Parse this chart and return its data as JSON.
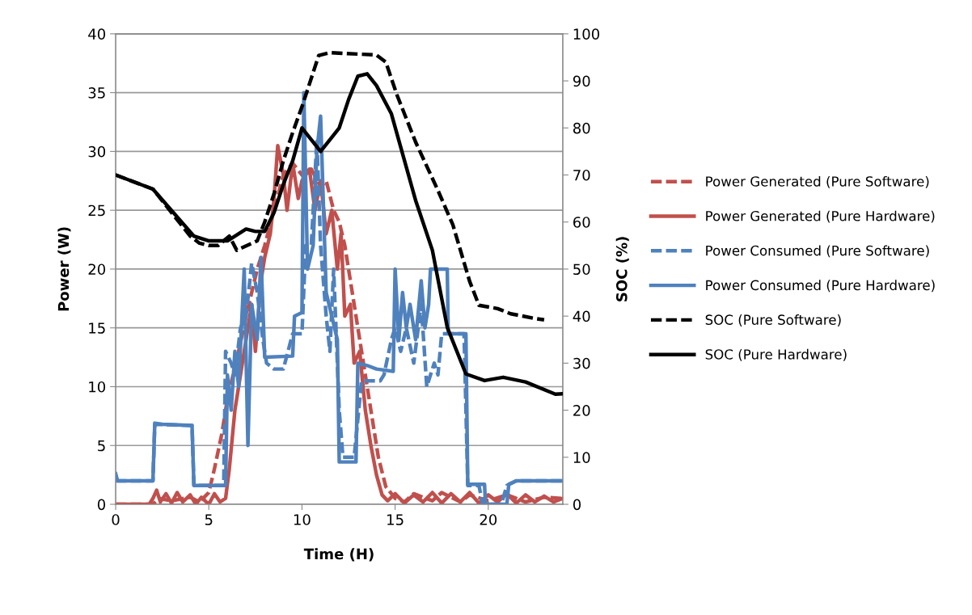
{
  "chart_data": {
    "type": "line",
    "xlabel": "Time (H)",
    "ylabel": "Power (W)",
    "y2label": "SOC (%)",
    "xlim": [
      0,
      24
    ],
    "xticks": [
      0,
      5,
      10,
      15,
      20
    ],
    "ylim": [
      0,
      40
    ],
    "yticks": [
      0,
      5,
      10,
      15,
      20,
      25,
      30,
      35,
      40
    ],
    "y2lim": [
      0,
      100
    ],
    "y2ticks": [
      0,
      10,
      20,
      30,
      40,
      50,
      60,
      70,
      80,
      90,
      100
    ],
    "grid": "y",
    "legend": "right",
    "marker": "none",
    "series": [
      {
        "name": "Power Generated (Pure Software)",
        "color": "#c0504d",
        "line_style": "dashed",
        "x": [
          0,
          2,
          2.3,
          3,
          4,
          4.5,
          5,
          5.3,
          5.7,
          6,
          6.3,
          6.6,
          7,
          7.3,
          7.6,
          8,
          8.5,
          9,
          9.5,
          10,
          10.5,
          11,
          11.3,
          11.7,
          12,
          12.3,
          12.6,
          12.9,
          13.2,
          13.5,
          13.8,
          14.1,
          14.5,
          15,
          15.5,
          16,
          17,
          17.5,
          18.5,
          19,
          20,
          21,
          22,
          23,
          24
        ],
        "values": [
          0,
          0,
          0.5,
          0.3,
          0.6,
          0.2,
          1,
          3,
          6,
          9,
          11,
          13,
          16,
          18,
          20,
          22,
          25,
          28,
          29,
          28,
          28.5,
          27,
          27.5,
          25,
          24,
          22,
          19,
          16,
          13,
          10,
          7,
          4,
          1.5,
          0.5,
          0.2,
          0.9,
          0.3,
          1,
          0.2,
          0.8,
          0.3,
          0.8,
          0.2,
          0.6,
          0.5
        ]
      },
      {
        "name": "Power Generated (Pure Hardware)",
        "color": "#c0504d",
        "line_style": "solid",
        "x": [
          0,
          1.8,
          2,
          2.2,
          2.4,
          2.7,
          3,
          3.3,
          3.6,
          4,
          4.3,
          4.6,
          5,
          5.3,
          5.6,
          5.9,
          6.1,
          6.4,
          6.7,
          7,
          7.3,
          7.5,
          7.8,
          8,
          8.3,
          8.5,
          8.7,
          9,
          9.2,
          9.5,
          9.8,
          10,
          10.4,
          10.7,
          11,
          11.3,
          11.6,
          11.9,
          12.1,
          12.3,
          12.6,
          12.8,
          13.1,
          13.4,
          13.7,
          14,
          14.3,
          14.6,
          15,
          15.5,
          16,
          16.5,
          17,
          17.5,
          18,
          18.5,
          19,
          19.5,
          20,
          20.5,
          21,
          21.5,
          22,
          22.5,
          23,
          23.5,
          24
        ],
        "values": [
          0,
          0,
          0.5,
          1.2,
          0.2,
          0.9,
          0.1,
          1,
          0.2,
          0.8,
          0,
          0.6,
          0,
          0.9,
          0.2,
          0.5,
          3,
          8,
          11,
          14,
          17,
          13,
          19,
          21,
          23,
          26,
          30.5,
          28,
          25,
          29,
          26,
          27.5,
          28.5,
          25,
          27.5,
          23,
          25,
          20,
          23,
          16,
          17,
          12,
          13,
          8,
          5,
          2.5,
          0.8,
          0.3,
          0.9,
          0.1,
          0.8,
          0.2,
          1,
          0.1,
          0.9,
          0.2,
          1,
          0.1,
          0.8,
          0.2,
          0.9,
          0.1,
          0.8,
          0.2,
          0.7,
          0.2,
          0.5
        ]
      },
      {
        "name": "Power Consumed (Pure Software)",
        "color": "#4f81bd",
        "line_style": "dashed",
        "x": [
          0,
          2,
          2.1,
          4.1,
          4.2,
          5.8,
          5.9,
          6.2,
          6.4,
          6.7,
          7,
          7.3,
          7.6,
          7.9,
          8.1,
          8.5,
          9,
          9.5,
          10,
          10.2,
          10.5,
          10.8,
          11,
          11.3,
          11.5,
          11.7,
          12,
          12.2,
          12.8,
          13.2,
          14.2,
          14.4,
          14.8,
          15,
          15.3,
          15.6,
          16,
          16.4,
          16.7,
          17.1,
          17.3,
          17.5,
          18.7,
          18.9,
          19.5,
          19.7,
          20.7,
          21,
          21.5,
          24
        ],
        "values": [
          2,
          2,
          6.8,
          6.7,
          1.6,
          1.6,
          13,
          12,
          11,
          15,
          16,
          20.5,
          18,
          14,
          12,
          11.5,
          11.5,
          14.5,
          14.5,
          22,
          22,
          31,
          22,
          16,
          13,
          20,
          8,
          4,
          4,
          10.5,
          10.5,
          11,
          14,
          15,
          13,
          15,
          12,
          17,
          10,
          12,
          11,
          14.5,
          14.5,
          1.6,
          1.6,
          0,
          0,
          1.6,
          2,
          2
        ]
      },
      {
        "name": "Power Consumed (Pure Hardware)",
        "color": "#4f81bd",
        "line_style": "solid",
        "x": [
          0,
          0.1,
          2,
          2.1,
          2.5,
          4.1,
          4.2,
          5.9,
          6,
          6.2,
          6.4,
          6.6,
          6.9,
          7.1,
          7.3,
          7.6,
          7.8,
          8,
          9.5,
          9.6,
          10,
          10.1,
          10.3,
          10.6,
          10.8,
          11,
          11.3,
          11.6,
          11.9,
          12,
          12.9,
          13,
          13.5,
          14,
          14.9,
          15,
          15.2,
          15.4,
          15.6,
          15.8,
          16.1,
          16.4,
          16.6,
          16.8,
          16.9,
          17.8,
          17.85,
          18.8,
          18.9,
          19.8,
          19.85,
          21,
          21.1,
          21.5,
          24
        ],
        "values": [
          2.6,
          2,
          2,
          6.9,
          6.8,
          6.7,
          1.6,
          1.6,
          11,
          8,
          13,
          10,
          20,
          5,
          17,
          14,
          21,
          12.5,
          12.6,
          16,
          16.3,
          35,
          20,
          22,
          30,
          33,
          18,
          16,
          14,
          3.6,
          3.6,
          12,
          11.8,
          11.5,
          11.3,
          20,
          14,
          18,
          15,
          17,
          14,
          19,
          15,
          17,
          20,
          20,
          14.5,
          14.5,
          1.7,
          1.7,
          0,
          0,
          1.7,
          2,
          2
        ]
      },
      {
        "name": "SOC (Pure Software)",
        "color": "#000000",
        "line_style": "dashed",
        "axis": "y2",
        "x": [
          0,
          2,
          4,
          4.5,
          5,
          5.5,
          6.1,
          6.5,
          7.6,
          8,
          8.5,
          9,
          9.5,
          10,
          10.9,
          11.5,
          14,
          14.5,
          15.1,
          16.1,
          17.3,
          18.1,
          19,
          19.5,
          20.5,
          21.2,
          22.5,
          23
        ],
        "values": [
          70,
          67,
          57,
          55.5,
          55,
          55,
          57,
          54,
          56,
          60,
          66,
          73,
          79,
          84.5,
          95.4,
          96,
          95.5,
          94,
          87,
          77,
          66.7,
          59.4,
          47.4,
          42.3,
          41.6,
          40.5,
          39.5,
          39.2
        ]
      },
      {
        "name": "SOC (Pure Hardware)",
        "color": "#000000",
        "line_style": "solid",
        "axis": "y2",
        "x": [
          0,
          2,
          4.2,
          5,
          6,
          7,
          7.5,
          8,
          8.5,
          9,
          9.5,
          10,
          11,
          12,
          12.5,
          13,
          13.5,
          14,
          14.8,
          16.1,
          17,
          17.8,
          18.8,
          19.8,
          20.8,
          22,
          23.6,
          24
        ],
        "values": [
          70,
          67,
          57,
          56,
          56,
          58.5,
          58,
          58,
          62,
          68,
          73,
          80,
          75,
          80,
          86,
          91,
          91.5,
          89,
          83,
          64.6,
          54,
          37.6,
          27.7,
          26.3,
          27,
          26,
          23.4,
          23.5
        ]
      }
    ]
  }
}
